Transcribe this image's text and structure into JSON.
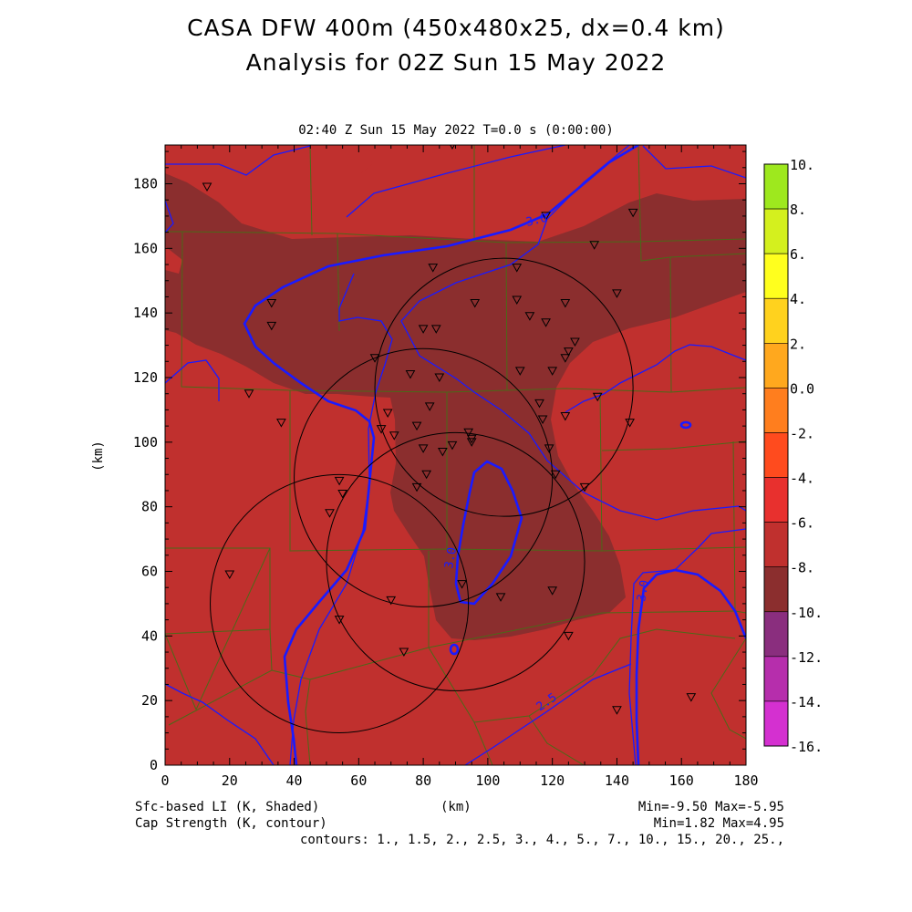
{
  "title": {
    "line1": "CASA DFW 400m (450x480x25, dx=0.4 km)",
    "line2": "Analysis for 02Z Sun 15 May 2022"
  },
  "subtitle": "02:40 Z Sun 15 May 2022    T=0.0 s (0:00:00)",
  "map": {
    "x_ticks": [
      "0",
      "20",
      "40",
      "60",
      "80",
      "100",
      "120",
      "140",
      "160",
      "180"
    ],
    "y_ticks": [
      "0",
      "20",
      "40",
      "60",
      "80",
      "100",
      "120",
      "140",
      "160",
      "180"
    ],
    "x_range_km": [
      0,
      180
    ],
    "y_range_km": [
      0,
      192
    ],
    "xlabel": "(km)",
    "ylabel": "(km)",
    "contour_labels": [
      "3.0",
      "3.0",
      "3.0",
      "2.5"
    ],
    "colors": {
      "li_m6_to_m8": "#c0302e",
      "li_m8_to_m10": "#8b2e2e",
      "cap_contour": "#1a1aff",
      "county_lines": "#4a6a18",
      "radar_rings": "#000000"
    }
  },
  "colorbar": {
    "labels": [
      "10.",
      "8.",
      "6.",
      "4.",
      "2.",
      "0.0",
      "-2.",
      "-4.",
      "-6.",
      "-8.",
      "-10.",
      "-12.",
      "-14.",
      "-16."
    ],
    "colors": [
      "#9ee81e",
      "#d4f01e",
      "#ffff1e",
      "#ffd21e",
      "#ffa81e",
      "#ff7e1e",
      "#ff4b1e",
      "#e8302e",
      "#c0302e",
      "#8b2e2e",
      "#8a2e7e",
      "#b62eac",
      "#d430d0"
    ]
  },
  "footer": {
    "shaded": "Sfc-based LI (K, Shaded)",
    "contour": "Cap Strength (K, contour)",
    "xunits": "(km)",
    "shaded_minmax": "Min=-9.50 Max=-5.95",
    "contour_minmax": "Min=1.82 Max=4.95",
    "contours": "contours: 1., 1.5, 2., 2.5, 3., 4., 5., 7., 10., 15., 20., 25.,"
  },
  "stations": [
    [
      13,
      179
    ],
    [
      26,
      115
    ],
    [
      36,
      106
    ],
    [
      33,
      143
    ],
    [
      33,
      136
    ],
    [
      54,
      88
    ],
    [
      55,
      84
    ],
    [
      51,
      78
    ],
    [
      20,
      59
    ],
    [
      54,
      45
    ],
    [
      70,
      51
    ],
    [
      74,
      35
    ],
    [
      65,
      126
    ],
    [
      69,
      109
    ],
    [
      67,
      104
    ],
    [
      71,
      102
    ],
    [
      76,
      121
    ],
    [
      78,
      105
    ],
    [
      80,
      135
    ],
    [
      82,
      111
    ],
    [
      84,
      135
    ],
    [
      85,
      120
    ],
    [
      80,
      98
    ],
    [
      81,
      90
    ],
    [
      86,
      97
    ],
    [
      89,
      99
    ],
    [
      94,
      103
    ],
    [
      95,
      101
    ],
    [
      95,
      100
    ],
    [
      78,
      86
    ],
    [
      92,
      56
    ],
    [
      89,
      192
    ],
    [
      83,
      154
    ],
    [
      96,
      143
    ],
    [
      109,
      154
    ],
    [
      109,
      144
    ],
    [
      113,
      139
    ],
    [
      118,
      137
    ],
    [
      118,
      170
    ],
    [
      124,
      143
    ],
    [
      127,
      131
    ],
    [
      125,
      128
    ],
    [
      124,
      126
    ],
    [
      120,
      122
    ],
    [
      110,
      122
    ],
    [
      116,
      112
    ],
    [
      117,
      107
    ],
    [
      124,
      108
    ],
    [
      119,
      98
    ],
    [
      121,
      90
    ],
    [
      130,
      86
    ],
    [
      125,
      40
    ],
    [
      120,
      54
    ],
    [
      104,
      52
    ],
    [
      134,
      114
    ],
    [
      144,
      106
    ],
    [
      140,
      17
    ],
    [
      163,
      21
    ],
    [
      145,
      171
    ],
    [
      133,
      161
    ],
    [
      140,
      146
    ]
  ],
  "radar_rings": [
    [
      54,
      50,
      40
    ],
    [
      90,
      63,
      40
    ],
    [
      80,
      89,
      40
    ],
    [
      105,
      117,
      40
    ]
  ]
}
